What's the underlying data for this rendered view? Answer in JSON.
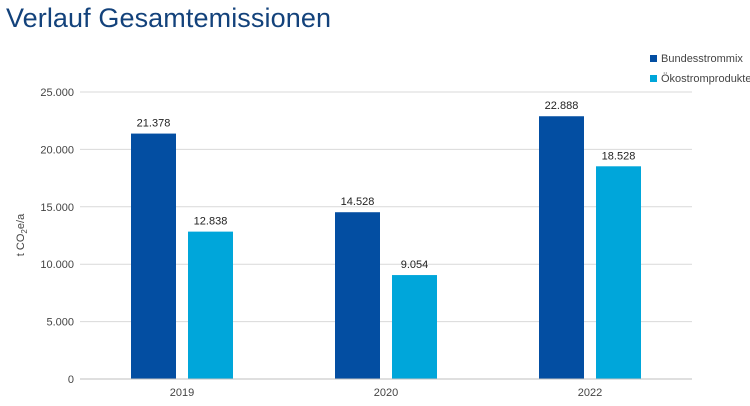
{
  "colors": {
    "title": "#13427b",
    "grid": "#d9d9d9",
    "axis": "#bfbfbf"
  },
  "chart_data": {
    "type": "bar",
    "title": "Verlauf Gesamtemissionen",
    "ylabel_parts": [
      "t CO",
      "2",
      "e/a"
    ],
    "categories": [
      "2019",
      "2020",
      "2022"
    ],
    "series": [
      {
        "name": "Bundesstrommix",
        "color": "#034ea2",
        "values": [
          21378,
          14528,
          22888
        ],
        "labels": [
          "21.378",
          "14.528",
          "22.888"
        ]
      },
      {
        "name": "Ökostromprodukte",
        "color": "#00a6da",
        "values": [
          12838,
          9054,
          18528
        ],
        "labels": [
          "12.838",
          "9.054",
          "18.528"
        ]
      }
    ],
    "ylim": [
      0,
      25000
    ],
    "yticks": [
      0,
      5000,
      10000,
      15000,
      20000,
      25000
    ],
    "ytick_labels": [
      "0",
      "5.000",
      "10.000",
      "15.000",
      "20.000",
      "25.000"
    ],
    "grid": true,
    "legend_position": "top-right"
  }
}
